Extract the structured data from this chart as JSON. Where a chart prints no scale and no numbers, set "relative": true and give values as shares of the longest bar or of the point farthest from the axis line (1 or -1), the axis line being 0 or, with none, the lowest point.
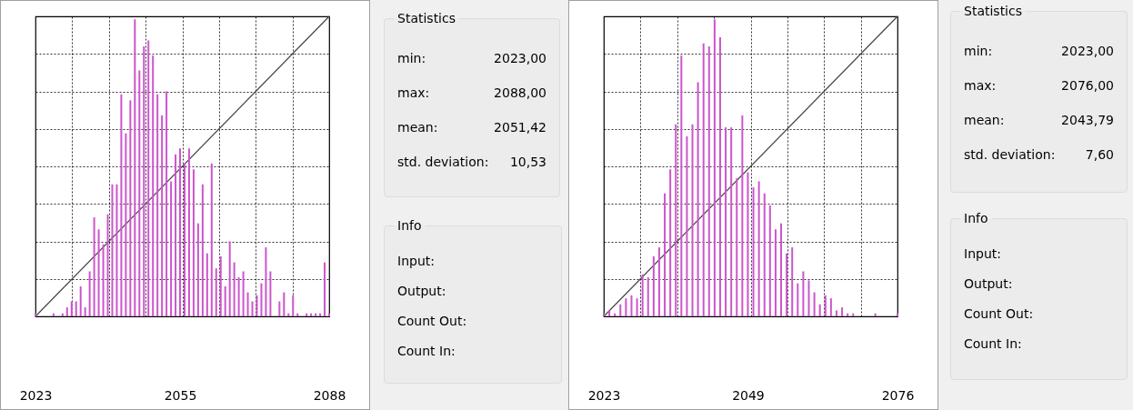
{
  "chart_data": [
    {
      "type": "bar",
      "relative": true,
      "grid": true,
      "xlim": [
        2023,
        2088
      ],
      "xticks": [
        2023,
        2055,
        2088
      ],
      "x": [
        2023,
        2024,
        2025,
        2026,
        2027,
        2028,
        2029,
        2030,
        2031,
        2032,
        2033,
        2034,
        2035,
        2036,
        2037,
        2038,
        2039,
        2040,
        2041,
        2042,
        2043,
        2044,
        2045,
        2046,
        2047,
        2048,
        2049,
        2050,
        2051,
        2052,
        2053,
        2054,
        2055,
        2056,
        2057,
        2058,
        2059,
        2060,
        2061,
        2062,
        2063,
        2064,
        2065,
        2066,
        2067,
        2068,
        2069,
        2070,
        2071,
        2072,
        2073,
        2074,
        2075,
        2076,
        2077,
        2078,
        2079,
        2080,
        2081,
        2082,
        2083,
        2084,
        2085,
        2086,
        2087,
        2088
      ],
      "series": [
        {
          "type": "bar",
          "color": "#cc55cc",
          "values": [
            0.01,
            0,
            0,
            0,
            0.01,
            0,
            0.01,
            0.03,
            0.05,
            0.05,
            0.1,
            0.03,
            0.15,
            0.33,
            0.29,
            0.24,
            0.34,
            0.44,
            0.44,
            0.74,
            0.61,
            0.72,
            0.99,
            0.82,
            0.9,
            0.92,
            0.87,
            0.74,
            0.67,
            0.75,
            0.45,
            0.54,
            0.56,
            0.51,
            0.56,
            0.49,
            0.31,
            0.44,
            0.21,
            0.51,
            0.16,
            0.2,
            0.1,
            0.25,
            0.18,
            0.13,
            0.15,
            0.08,
            0.05,
            0.07,
            0.11,
            0.23,
            0.15,
            0,
            0.05,
            0.08,
            0.01,
            0.07,
            0.01,
            0,
            0.01,
            0.01,
            0.01,
            0.01,
            0.18,
            0.01
          ]
        },
        {
          "type": "line",
          "color": "#444444",
          "x": [
            2023,
            2088
          ],
          "values": [
            0,
            1
          ]
        }
      ]
    },
    {
      "type": "other",
      "title": "Statistics",
      "y_categories": [
        "min:",
        "max:",
        "mean:",
        "std. deviation:"
      ],
      "y2_categories": [
        "2023,00",
        "2088,00",
        "2051,42",
        "10,53"
      ]
    },
    {
      "type": "other",
      "title": "Info",
      "y_categories": [
        "Input:",
        "Output:",
        "Count Out:",
        "Count In:"
      ]
    },
    {
      "type": "bar",
      "relative": true,
      "grid": true,
      "xlim": [
        2023,
        2076
      ],
      "xticks": [
        2023,
        2049,
        2076
      ],
      "x": [
        2023,
        2024,
        2025,
        2026,
        2027,
        2028,
        2029,
        2030,
        2031,
        2032,
        2033,
        2034,
        2035,
        2036,
        2037,
        2038,
        2039,
        2040,
        2041,
        2042,
        2043,
        2044,
        2045,
        2046,
        2047,
        2048,
        2049,
        2050,
        2051,
        2052,
        2053,
        2054,
        2055,
        2056,
        2057,
        2058,
        2059,
        2060,
        2061,
        2062,
        2063,
        2064,
        2065,
        2066,
        2067,
        2068,
        2069,
        2070,
        2071,
        2072,
        2073,
        2074,
        2075,
        2076
      ],
      "series": [
        {
          "type": "bar",
          "color": "#cc55cc",
          "values": [
            0.01,
            0.02,
            0.01,
            0.04,
            0.06,
            0.07,
            0.06,
            0.14,
            0.13,
            0.2,
            0.23,
            0.41,
            0.49,
            0.64,
            0.87,
            0.6,
            0.64,
            0.78,
            0.91,
            0.9,
            0.99,
            0.93,
            0.63,
            0.63,
            0.46,
            0.67,
            0.48,
            0.43,
            0.45,
            0.41,
            0.37,
            0.29,
            0.31,
            0.21,
            0.23,
            0.11,
            0.15,
            0.12,
            0.08,
            0.04,
            0.07,
            0.06,
            0.02,
            0.03,
            0.01,
            0.01,
            0,
            0,
            0,
            0.01,
            0,
            0,
            0,
            0.01
          ]
        },
        {
          "type": "line",
          "color": "#444444",
          "x": [
            2023,
            2076
          ],
          "values": [
            0,
            1
          ]
        }
      ]
    },
    {
      "type": "other",
      "title": "Statistics",
      "y_categories": [
        "min:",
        "max:",
        "mean:",
        "std. deviation:"
      ],
      "y2_categories": [
        "2023,00",
        "2076,00",
        "2043,79",
        "7,60"
      ]
    },
    {
      "type": "other",
      "title": "Info",
      "y_categories": [
        "Input:",
        "Output:",
        "Count Out:",
        "Count In:"
      ]
    }
  ]
}
